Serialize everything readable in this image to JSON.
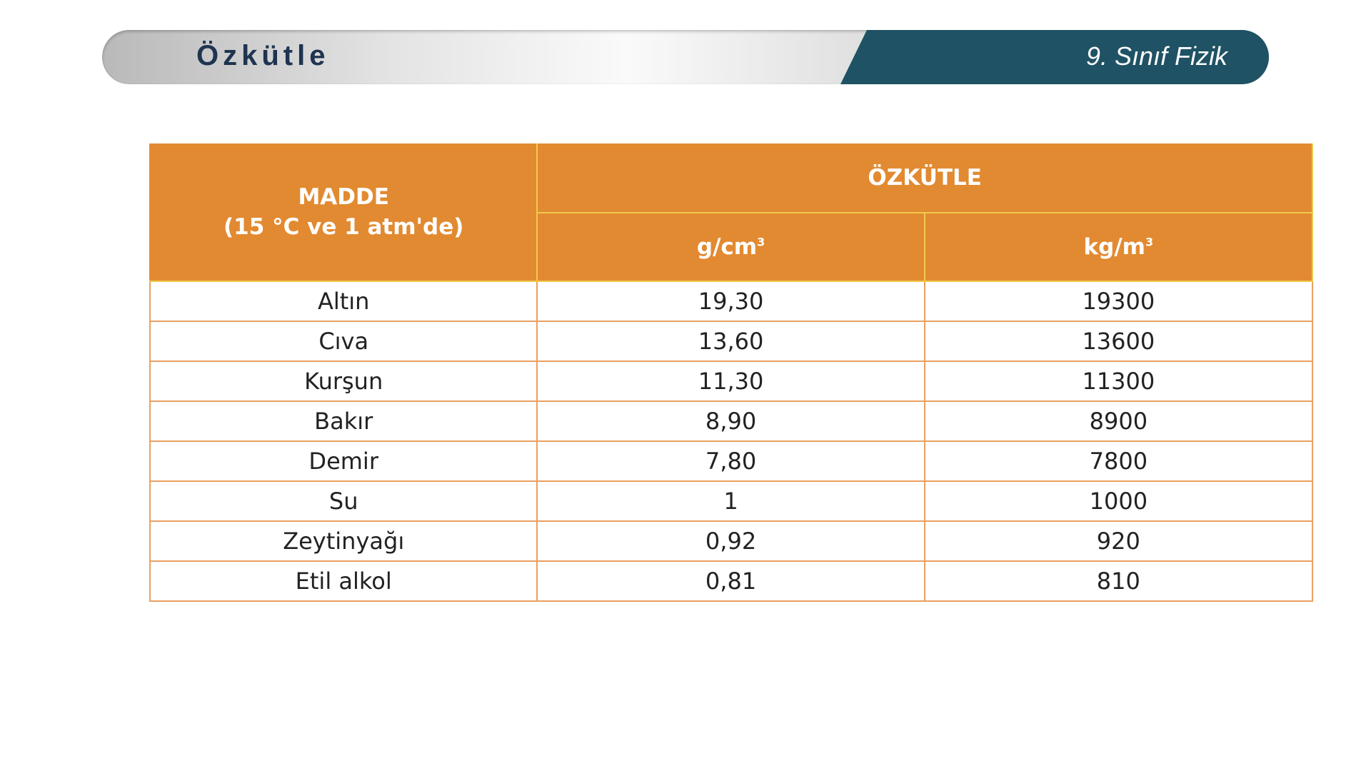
{
  "header": {
    "title": "Özkütle",
    "subtitle": "9. Sınıf Fizik",
    "colors": {
      "dark_band": "#1f5264",
      "title_text": "#1e3450"
    }
  },
  "table": {
    "colors": {
      "header_bg": "#e28a31",
      "border": "#e8a060"
    },
    "headers": {
      "madde": "MADDE",
      "madde_condition": "(15 °C ve 1 atm'de)",
      "ozkutle": "ÖZKÜTLE",
      "unit1": "g/cm",
      "unit1_exp": "3",
      "unit2": "kg/m",
      "unit2_exp": "3"
    },
    "rows": [
      [
        "Altın",
        "19,30",
        "19300"
      ],
      [
        "Cıva",
        "13,60",
        "13600"
      ],
      [
        "Kurşun",
        "11,30",
        "11300"
      ],
      [
        "Bakır",
        "8,90",
        "8900"
      ],
      [
        "Demir",
        "7,80",
        "7800"
      ],
      [
        "Su",
        "1",
        "1000"
      ],
      [
        "Zeytinyağı",
        "0,92",
        "920"
      ],
      [
        "Etil alkol",
        "0,81",
        "810"
      ]
    ]
  }
}
